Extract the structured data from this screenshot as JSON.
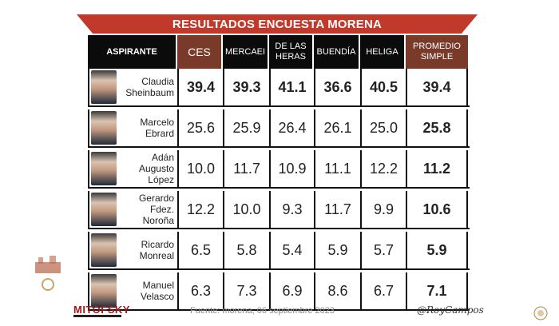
{
  "title": "RESULTADOS ENCUESTA MORENA",
  "headers": {
    "aspirante": "ASPIRANTE",
    "ces": "CES",
    "mercaei": "MERCAEI",
    "delasheras": "DE LAS HERAS",
    "buendia": "BUENDÍA",
    "heliga": "HELIGA",
    "promedio": "PROMEDIO SIMPLE"
  },
  "rows": [
    {
      "name": "Claudia Sheinbaum",
      "ces": "39.4",
      "mercaei": "39.3",
      "delasheras": "41.1",
      "buendia": "36.6",
      "heliga": "40.5",
      "promedio": "39.4"
    },
    {
      "name": "Marcelo Ebrard",
      "ces": "25.6",
      "mercaei": "25.9",
      "delasheras": "26.4",
      "buendia": "26.1",
      "heliga": "25.0",
      "promedio": "25.8"
    },
    {
      "name": "Adán Augusto López",
      "ces": "10.0",
      "mercaei": "11.7",
      "delasheras": "10.9",
      "buendia": "11.1",
      "heliga": "12.2",
      "promedio": "11.2"
    },
    {
      "name": "Gerardo Fdez. Noroña",
      "ces": "12.2",
      "mercaei": "10.0",
      "delasheras": "9.3",
      "buendia": "11.7",
      "heliga": "9.9",
      "promedio": "10.6"
    },
    {
      "name": "Ricardo Monreal",
      "ces": "6.5",
      "mercaei": "5.8",
      "delasheras": "5.4",
      "buendia": "5.9",
      "heliga": "5.7",
      "promedio": "5.9"
    },
    {
      "name": "Manuel Velasco",
      "ces": "6.3",
      "mercaei": "7.3",
      "delasheras": "6.9",
      "buendia": "8.6",
      "heliga": "6.7",
      "promedio": "7.1"
    }
  ],
  "footer": {
    "source": "Fuente: morena,  06 septiembre  2023",
    "brand": "MITOFSKY",
    "signature": "@RoyCampos"
  },
  "colors": {
    "banner": "#c0392b",
    "header_dark": "#0b0b0b",
    "header_accent": "#7a3a2a"
  },
  "chart_data": {
    "type": "table",
    "title": "RESULTADOS ENCUESTA MORENA",
    "columns": [
      "ASPIRANTE",
      "CES",
      "MERCAEI",
      "DE LAS HERAS",
      "BUENDÍA",
      "HELIGA",
      "PROMEDIO SIMPLE"
    ],
    "categories": [
      "Claudia Sheinbaum",
      "Marcelo Ebrard",
      "Adán Augusto López",
      "Gerardo Fdez. Noroña",
      "Ricardo Monreal",
      "Manuel Velasco"
    ],
    "series": [
      {
        "name": "CES",
        "values": [
          39.4,
          25.6,
          10.0,
          12.2,
          6.5,
          6.3
        ]
      },
      {
        "name": "MERCAEI",
        "values": [
          39.3,
          25.9,
          11.7,
          10.0,
          5.8,
          7.3
        ]
      },
      {
        "name": "DE LAS HERAS",
        "values": [
          41.1,
          26.4,
          10.9,
          9.3,
          5.4,
          6.9
        ]
      },
      {
        "name": "BUENDÍA",
        "values": [
          36.6,
          26.1,
          11.1,
          11.7,
          5.9,
          8.6
        ]
      },
      {
        "name": "HELIGA",
        "values": [
          40.5,
          25.0,
          12.2,
          9.9,
          5.7,
          6.7
        ]
      },
      {
        "name": "PROMEDIO SIMPLE",
        "values": [
          39.4,
          25.8,
          11.2,
          10.6,
          5.9,
          7.1
        ]
      }
    ]
  }
}
